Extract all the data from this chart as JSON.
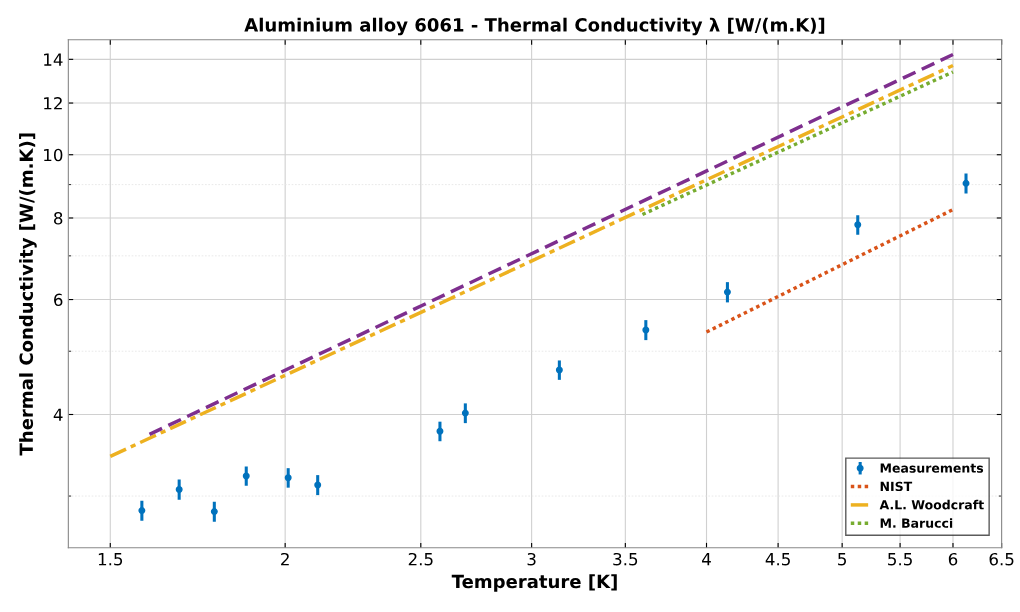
{
  "chart_data": {
    "type": "scatter",
    "title": "Aluminium alloy 6061 - Thermal Conductivity λ [W/(m.K)]",
    "xlabel": "Temperature [K]",
    "ylabel": "Thermal Conductivity [W/(m.K)]",
    "log": "xy",
    "xlim": [
      1.4,
      6.5
    ],
    "ylim": [
      2.5,
      15
    ],
    "xticks": [
      1.5,
      2,
      2.5,
      3,
      3.5,
      4,
      4.5,
      5,
      5.5,
      6,
      6.5
    ],
    "yticks": [
      4,
      6,
      8,
      10,
      12,
      14
    ],
    "grid": true,
    "legend": "bottom right",
    "series": [
      {
        "name": "Measurements",
        "color": "#0072bd",
        "marker": "circle",
        "x": [
          1.58,
          1.68,
          1.78,
          1.876,
          2.01,
          2.11,
          2.58,
          2.69,
          3.14,
          3.62,
          4.14,
          5.13,
          6.13
        ],
        "values": [
          2.85,
          3.07,
          2.84,
          3.22,
          3.2,
          3.12,
          3.77,
          4.02,
          4.68,
          5.39,
          6.16,
          7.81,
          9.04
        ],
        "errors": [
          0.1,
          0.11,
          0.1,
          0.11,
          0.11,
          0.11,
          0.13,
          0.14,
          0.16,
          0.19,
          0.22,
          0.27,
          0.32
        ]
      },
      {
        "name": "NIST",
        "type": "line",
        "color": "#d95319",
        "line_style": "dotted",
        "x": [
          4,
          6
        ],
        "values": [
          5.35,
          8.24
        ]
      },
      {
        "name": "A.L. Woodcraft",
        "type": "line",
        "color": "#edb120",
        "line_style": "dashdot",
        "x": [
          1.5,
          6
        ],
        "values": [
          3.45,
          13.7
        ]
      },
      {
        "type": "line",
        "color": "#7e2f8e",
        "line_style": "dashed",
        "x": [
          1.6,
          6
        ],
        "values": [
          3.73,
          14.24
        ]
      },
      {
        "name": "M. Barucci",
        "type": "line",
        "color": "#77ac30",
        "line_style": "dotted",
        "x": [
          3.6,
          6
        ],
        "values": [
          8.1,
          13.39
        ]
      }
    ]
  }
}
